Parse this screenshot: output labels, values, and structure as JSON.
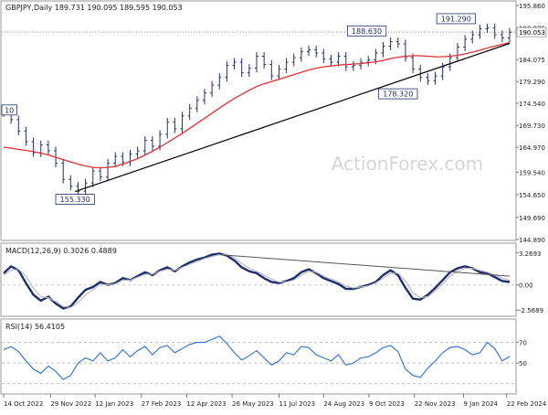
{
  "chart_data": [
    {
      "type": "line",
      "panel": "price",
      "title": "GBPJPY,Daily  189.731 190.095 189.595 190.053",
      "series": [
        {
          "name": "",
          "kind": "candlestick",
          "color": "#1f2f6e",
          "values": [
            172.5,
            171.0,
            168.5,
            166.2,
            163.8,
            165.5,
            164.2,
            161.5,
            158.0,
            156.5,
            155.4,
            157.2,
            159.8,
            158.5,
            161.5,
            163.0,
            161.8,
            163.5,
            164.2,
            166.5,
            165.2,
            167.8,
            170.5,
            169.0,
            171.8,
            173.5,
            175.2,
            176.8,
            178.5,
            180.2,
            182.8,
            183.5,
            181.2,
            182.2,
            184.8,
            183.0,
            180.5,
            182.0,
            183.5,
            184.5,
            185.8,
            186.2,
            185.5,
            184.2,
            183.5,
            184.8,
            182.5,
            182.8,
            183.5,
            184.0,
            185.5,
            187.0,
            188.0,
            187.5,
            184.5,
            182.0,
            180.2,
            179.5,
            180.5,
            182.5,
            184.5,
            186.8,
            188.5,
            189.5,
            190.8,
            191.0,
            189.5,
            188.8,
            190.053
          ]
        },
        {
          "name": "",
          "kind": "moving-average",
          "color": "#e03030",
          "values": [
            165.0,
            164.8,
            164.5,
            164.3,
            164.0,
            163.7,
            163.3,
            162.8,
            162.3,
            161.8,
            161.3,
            160.9,
            160.6,
            160.5,
            160.6,
            160.8,
            161.3,
            161.9,
            162.5,
            163.3,
            164.1,
            165.0,
            166.0,
            167.0,
            168.0,
            169.1,
            170.2,
            171.3,
            172.4,
            173.5,
            174.6,
            175.6,
            176.5,
            177.4,
            178.2,
            178.8,
            179.3,
            179.8,
            180.3,
            180.8,
            181.3,
            181.8,
            182.2,
            182.5,
            182.7,
            182.9,
            183.0,
            183.1,
            183.2,
            183.4,
            183.6,
            183.9,
            184.3,
            184.6,
            184.8,
            184.9,
            184.9,
            184.8,
            184.7,
            184.7,
            184.8,
            185.0,
            185.3,
            185.7,
            186.1,
            186.6,
            187.0,
            187.4,
            187.8
          ]
        },
        {
          "name": "",
          "kind": "trendline",
          "color": "#000000",
          "x": [
            9.6,
            68
          ],
          "values": [
            155.33,
            187.6
          ]
        }
      ],
      "annotations": [
        {
          "text": "155.330",
          "x": 9.6,
          "y": 155.33
        },
        {
          "text": "178.320",
          "x": 53,
          "y": 178.32
        },
        {
          "text": "188.630",
          "x": 48.8,
          "y": 188.63
        },
        {
          "text": "191.290",
          "x": 60.8,
          "y": 191.29
        },
        {
          "text": "10",
          "x": 0,
          "y": 173.0
        }
      ],
      "hline": {
        "y": 190.053,
        "color": "#888888",
        "style": "dotted"
      },
      "current_value_label": "190.053",
      "y_ticks": [
        "195.860",
        "190.975",
        "184.075",
        "179.290",
        "174.540",
        "169.730",
        "164.970",
        "159.540",
        "154.650",
        "149.690",
        "144.890"
      ],
      "y_ticks_values": [
        195.86,
        190.975,
        184.075,
        179.29,
        174.54,
        169.73,
        164.97,
        159.54,
        154.65,
        149.69,
        144.89
      ],
      "ylim": [
        144.89,
        195.86
      ]
    },
    {
      "type": "line",
      "panel": "macd",
      "title": "MACD(12,26,9) 0.3026 0.4889",
      "series": [
        {
          "name": "",
          "kind": "histogram",
          "color": "#1f2f6e",
          "values": [
            1.2,
            1.9,
            1.5,
            0.2,
            -1.0,
            -1.6,
            -1.2,
            -1.9,
            -2.4,
            -2.2,
            -1.3,
            -0.5,
            -0.2,
            0.3,
            0.0,
            0.2,
            0.7,
            0.5,
            0.9,
            1.3,
            1.0,
            1.5,
            1.8,
            1.4,
            1.9,
            2.3,
            2.6,
            2.8,
            3.1,
            3.2,
            3.0,
            2.5,
            1.8,
            1.4,
            1.2,
            0.7,
            0.3,
            0.2,
            0.4,
            0.7,
            1.3,
            1.6,
            1.2,
            0.7,
            0.4,
            0.1,
            -0.4,
            -0.4,
            -0.2,
            0.0,
            0.3,
            1.0,
            1.5,
            1.0,
            -0.3,
            -1.4,
            -1.5,
            -1.0,
            -0.3,
            0.5,
            1.3,
            1.7,
            1.9,
            1.7,
            1.3,
            1.2,
            0.8,
            0.4,
            0.3026
          ]
        },
        {
          "name": "",
          "kind": "signal",
          "color": "#b8b8b8",
          "values": [
            1.0,
            1.5,
            1.6,
            0.9,
            -0.3,
            -1.2,
            -1.3,
            -1.7,
            -2.2,
            -2.3,
            -1.8,
            -1.0,
            -0.5,
            0.1,
            0.0,
            0.1,
            0.5,
            0.5,
            0.8,
            1.1,
            1.1,
            1.4,
            1.6,
            1.5,
            1.8,
            2.1,
            2.4,
            2.7,
            2.9,
            3.1,
            3.1,
            2.8,
            2.2,
            1.7,
            1.4,
            1.0,
            0.6,
            0.3,
            0.3,
            0.5,
            1.0,
            1.4,
            1.3,
            0.9,
            0.6,
            0.3,
            -0.1,
            -0.3,
            -0.2,
            -0.1,
            0.2,
            0.7,
            1.2,
            1.2,
            0.4,
            -0.8,
            -1.3,
            -1.2,
            -0.6,
            0.1,
            0.9,
            1.4,
            1.7,
            1.7,
            1.5,
            1.3,
            1.0,
            0.7,
            0.4889
          ]
        },
        {
          "name": "",
          "kind": "divergence-line",
          "color": "#555555",
          "x": [
            29,
            68
          ],
          "values": [
            3.1,
            0.9
          ]
        }
      ],
      "y_ticks": [
        "3.2693",
        "0.00",
        "-2.5689"
      ],
      "y_ticks_values": [
        3.2693,
        0.0,
        -2.5689
      ],
      "ylim": [
        -3.2,
        3.9
      ]
    },
    {
      "type": "line",
      "panel": "rsi",
      "title": "RSI(14) 56.4105",
      "series": [
        {
          "name": "",
          "kind": "line",
          "color": "#2b6fd6",
          "values": [
            63,
            66,
            61,
            52,
            44,
            40,
            47,
            42,
            34,
            38,
            50,
            55,
            52,
            60,
            52,
            55,
            63,
            56,
            62,
            66,
            58,
            65,
            67,
            60,
            64,
            68,
            70,
            70,
            73,
            76,
            69,
            60,
            53,
            57,
            62,
            55,
            48,
            52,
            60,
            58,
            66,
            65,
            58,
            55,
            52,
            58,
            48,
            50,
            55,
            56,
            60,
            65,
            67,
            61,
            44,
            38,
            36,
            45,
            52,
            60,
            65,
            66,
            63,
            58,
            60,
            70,
            64,
            52,
            56.4105
          ]
        }
      ],
      "levels": [
        70,
        50,
        30
      ],
      "y_ticks": [
        "70",
        "50"
      ],
      "y_ticks_values": [
        70,
        50
      ],
      "ylim": [
        20,
        90
      ]
    }
  ],
  "x_axis": {
    "ticks": [
      "14 Oct 2022",
      "29 Nov 2022",
      "12 Jan 2023",
      "27 Feb 2023",
      "12 Apr 2023",
      "26 May 2023",
      "11 Jul 2023",
      "24 Aug 2023",
      "9 Oct 2023",
      "22 Nov 2023",
      "9 Jan 2024",
      "22 Feb 2024"
    ],
    "tick_index": [
      0,
      6.3,
      12.3,
      18.5,
      24.6,
      30.7,
      37.0,
      43.0,
      49.1,
      55.2,
      61.8,
      67.6
    ],
    "count": 69
  },
  "watermark": "ActionForex.com"
}
